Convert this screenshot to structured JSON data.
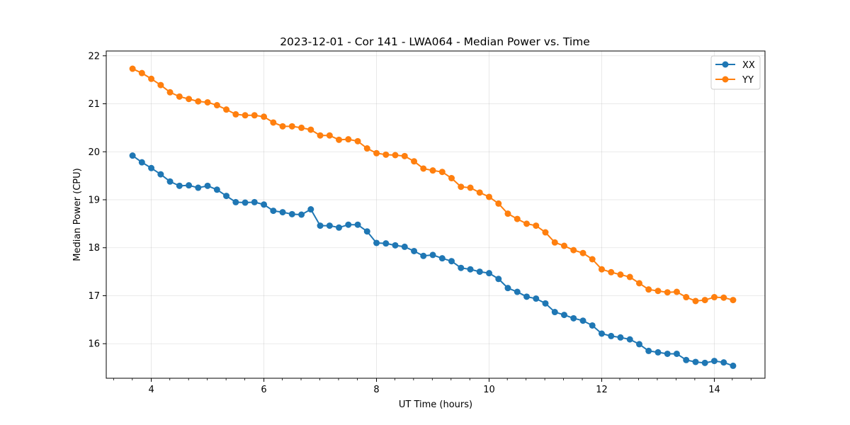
{
  "chart_data": {
    "type": "line",
    "title": "2023-12-01 - Cor 141 - LWA064 - Median Power vs. Time",
    "xlabel": "UT Time (hours)",
    "ylabel": "Median Power (CPU)",
    "xlim": [
      3.2,
      14.9
    ],
    "ylim": [
      15.28,
      22.1
    ],
    "xticks": [
      4,
      6,
      8,
      10,
      12,
      14
    ],
    "xtick_labels": [
      "4",
      "6",
      "8",
      "10",
      "12",
      "14"
    ],
    "xminor_step": 0.333,
    "yticks": [
      16,
      17,
      18,
      19,
      20,
      21,
      22
    ],
    "ytick_labels": [
      "16",
      "17",
      "18",
      "19",
      "20",
      "21",
      "22"
    ],
    "grid": true,
    "legend_position": "top-right",
    "x": [
      3.667,
      3.833,
      4.0,
      4.167,
      4.333,
      4.5,
      4.667,
      4.833,
      5.0,
      5.167,
      5.333,
      5.5,
      5.667,
      5.833,
      6.0,
      6.167,
      6.333,
      6.5,
      6.667,
      6.833,
      7.0,
      7.167,
      7.333,
      7.5,
      7.667,
      7.833,
      8.0,
      8.167,
      8.333,
      8.5,
      8.667,
      8.833,
      9.0,
      9.167,
      9.333,
      9.5,
      9.667,
      9.833,
      10.0,
      10.167,
      10.333,
      10.5,
      10.667,
      10.833,
      11.0,
      11.167,
      11.333,
      11.5,
      11.667,
      11.833,
      12.0,
      12.167,
      12.333,
      12.5,
      12.667,
      12.833,
      13.0,
      13.167,
      13.333,
      13.5,
      13.667,
      13.833,
      14.0,
      14.167,
      14.333
    ],
    "series": [
      {
        "name": "XX",
        "color": "#1f77b4",
        "values": [
          19.92,
          19.78,
          19.66,
          19.53,
          19.38,
          19.29,
          19.3,
          19.25,
          19.29,
          19.21,
          19.08,
          18.95,
          18.94,
          18.95,
          18.9,
          18.77,
          18.74,
          18.7,
          18.69,
          18.8,
          18.46,
          18.46,
          18.42,
          18.48,
          18.48,
          18.34,
          18.1,
          18.09,
          18.05,
          18.02,
          17.93,
          17.83,
          17.85,
          17.78,
          17.72,
          17.58,
          17.55,
          17.5,
          17.47,
          17.35,
          17.16,
          17.08,
          16.98,
          16.94,
          16.84,
          16.66,
          16.6,
          16.53,
          16.48,
          16.38,
          16.21,
          16.16,
          16.13,
          16.09,
          15.99,
          15.85,
          15.82,
          15.79,
          15.79,
          15.66,
          15.62,
          15.6,
          15.64,
          15.61,
          15.54
        ]
      },
      {
        "name": "YY",
        "color": "#ff7f0e",
        "values": [
          21.73,
          21.64,
          21.52,
          21.39,
          21.24,
          21.15,
          21.1,
          21.05,
          21.03,
          20.97,
          20.88,
          20.78,
          20.76,
          20.76,
          20.73,
          20.61,
          20.53,
          20.53,
          20.5,
          20.46,
          20.34,
          20.34,
          20.25,
          20.26,
          20.22,
          20.07,
          19.97,
          19.94,
          19.93,
          19.91,
          19.8,
          19.65,
          19.61,
          19.58,
          19.45,
          19.27,
          19.25,
          19.15,
          19.06,
          18.92,
          18.71,
          18.6,
          18.5,
          18.46,
          18.32,
          18.11,
          18.04,
          17.95,
          17.89,
          17.76,
          17.55,
          17.49,
          17.44,
          17.39,
          17.26,
          17.13,
          17.1,
          17.07,
          17.08,
          16.97,
          16.89,
          16.91,
          16.97,
          16.96,
          16.91
        ]
      }
    ]
  }
}
